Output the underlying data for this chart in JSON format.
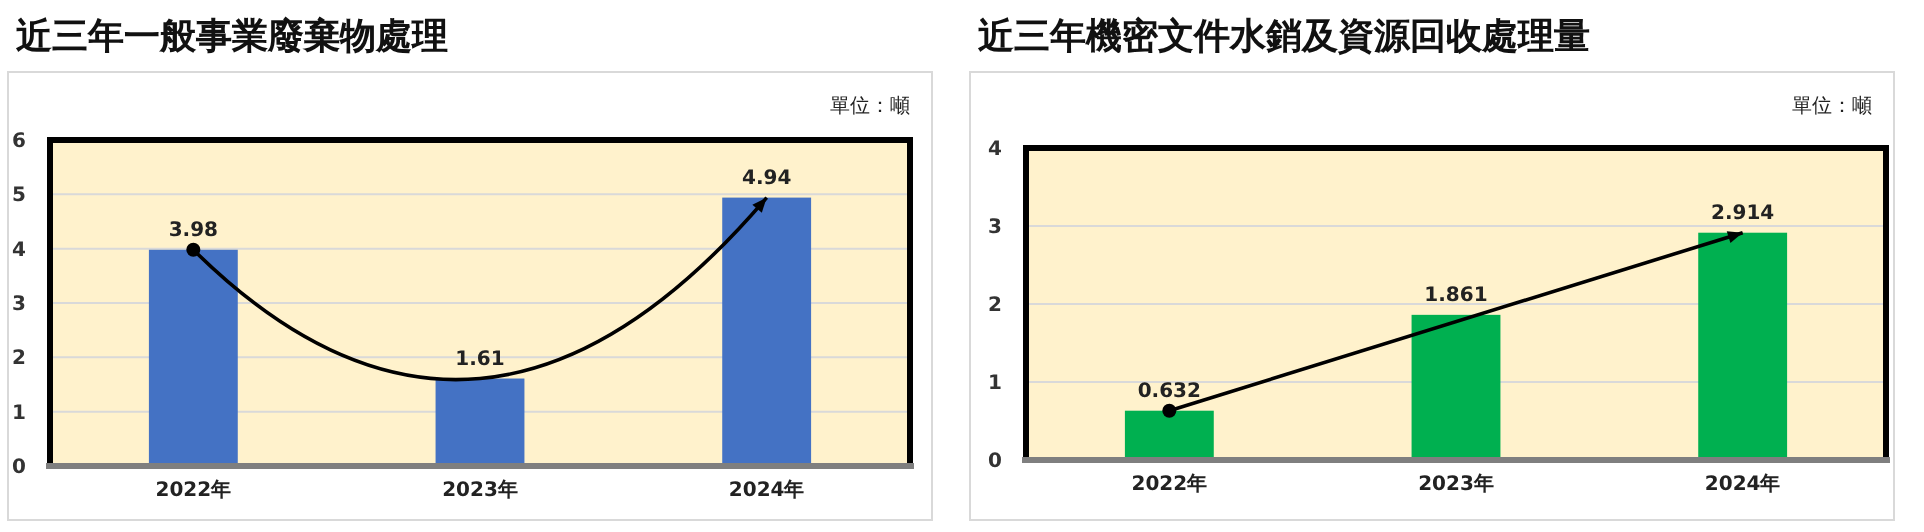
{
  "chart_data": [
    {
      "type": "bar",
      "title": "近三年一般事業廢棄物處理",
      "annotations": [
        "單位：噸"
      ],
      "categories": [
        "2022年",
        "2023年",
        "2024年"
      ],
      "values": [
        3.98,
        1.61,
        4.94
      ],
      "color": "#4472c4",
      "ylim": [
        0,
        6
      ],
      "yticks": [
        0,
        1,
        2,
        3,
        4,
        5,
        6
      ],
      "grid": "y",
      "data_labels": true
    },
    {
      "type": "bar",
      "title": "近三年機密文件水銷及資源回收處理量",
      "annotations": [
        "單位：噸"
      ],
      "categories": [
        "2022年",
        "2023年",
        "2024年"
      ],
      "values": [
        0.632,
        1.861,
        2.914
      ],
      "color": "#00b050",
      "ylim": [
        0,
        4
      ],
      "yticks": [
        0,
        1,
        2,
        3,
        4
      ],
      "grid": "y",
      "data_labels": true
    }
  ]
}
